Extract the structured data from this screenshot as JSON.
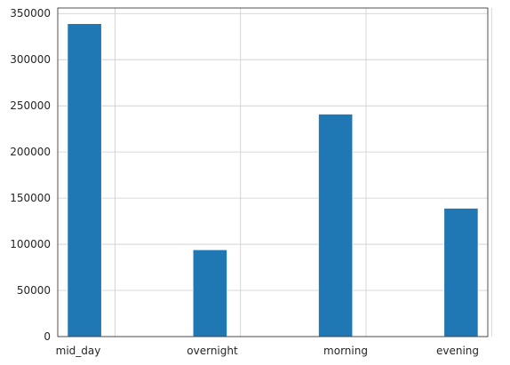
{
  "chart_data": {
    "type": "bar",
    "categories": [
      "mid_day",
      "overnight",
      "morning",
      "evening"
    ],
    "values": [
      339000,
      94000,
      241000,
      139000
    ],
    "ylim": [
      0,
      356000
    ],
    "yticks": [
      0,
      50000,
      100000,
      150000,
      200000,
      250000,
      300000,
      350000
    ],
    "ytick_labels": [
      "0",
      "50000",
      "100000",
      "150000",
      "200000",
      "250000",
      "300000",
      "350000"
    ],
    "grid": true,
    "bar_color": "#1f77b4",
    "title": "",
    "xlabel": "",
    "ylabel": ""
  }
}
